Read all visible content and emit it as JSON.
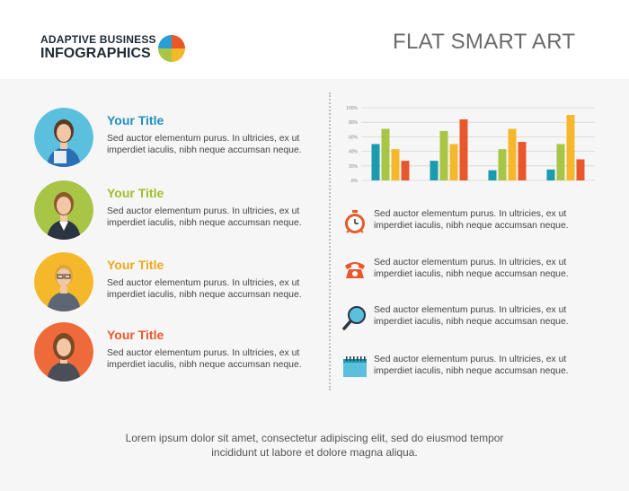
{
  "header": {
    "brand_line1": "ADAPTIVE BUSINESS",
    "brand_line2": "INFOGRAPHICS",
    "title": "FLAT SMART ART"
  },
  "people": [
    {
      "title": "Your Title",
      "desc": "Sed auctor elementum purus. In ultricies, ex ut imperdiet iaculis, nibh neque accumsan neque.",
      "color": "#1f8fbf",
      "circle": "#5bc0de"
    },
    {
      "title": "Your Title",
      "desc": "Sed auctor elementum purus. In ultricies, ex ut imperdiet iaculis, nibh neque accumsan neque.",
      "color": "#9fbe2a",
      "circle": "#a8c545"
    },
    {
      "title": "Your Title",
      "desc": "Sed auctor elementum purus. In ultricies, ex ut imperdiet iaculis, nibh neque accumsan neque.",
      "color": "#f0a81d",
      "circle": "#f5b82a"
    },
    {
      "title": "Your Title",
      "desc": "Sed auctor elementum purus. In ultricies, ex ut imperdiet iaculis, nibh neque accumsan neque.",
      "color": "#e8582b",
      "circle": "#ef6a3a"
    }
  ],
  "icons": [
    {
      "icon": "alarm-clock-icon",
      "text": "Sed auctor elementum purus. In ultricies, ex ut imperdiet iaculis, nibh neque accumsan neque."
    },
    {
      "icon": "telephone-icon",
      "text": "Sed auctor elementum purus. In ultricies, ex ut imperdiet iaculis, nibh neque accumsan neque."
    },
    {
      "icon": "magnifier-icon",
      "text": "Sed auctor elementum purus. In ultricies, ex ut imperdiet iaculis, nibh neque accumsan neque."
    },
    {
      "icon": "calendar-icon",
      "text": "Sed auctor elementum purus. In ultricies, ex ut imperdiet iaculis, nibh neque accumsan neque."
    }
  ],
  "footer": {
    "line1": "Lorem ipsum dolor sit amet, consectetur adipiscing elit, sed do eiusmod tempor",
    "line2": "incididunt ut labore et dolore magna aliqua."
  },
  "chart_data": {
    "type": "bar",
    "groups": 4,
    "yticks": [
      "100%",
      "80%",
      "60%",
      "40%",
      "20%",
      "0%"
    ],
    "ylim": [
      0,
      100
    ],
    "grid": true,
    "series_colors": [
      "#1a9bae",
      "#a8c545",
      "#f5b82a",
      "#e8582b"
    ],
    "series": [
      {
        "values": [
          50,
          27,
          14,
          15
        ]
      },
      {
        "values": [
          71,
          68,
          43,
          50
        ]
      },
      {
        "values": [
          43,
          50,
          71,
          90
        ]
      },
      {
        "values": [
          27,
          84,
          53,
          29
        ]
      }
    ]
  }
}
